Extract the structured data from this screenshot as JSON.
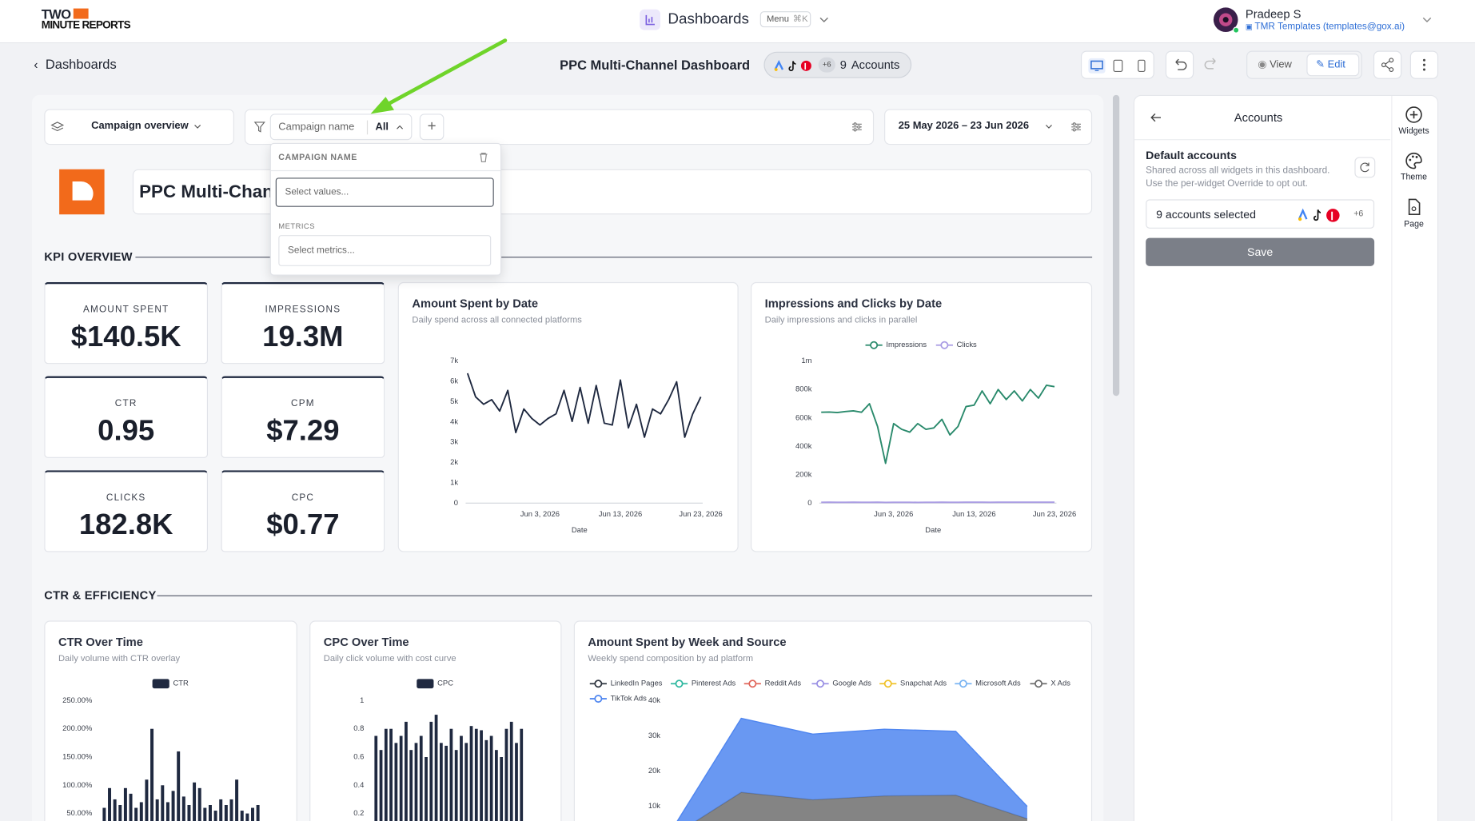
{
  "header": {
    "logo_top": "TWO",
    "logo_bottom": "MINUTE REPORTS",
    "app_title": "Dashboards",
    "menu": "Menu",
    "shortcut": "⌘K",
    "user_name": "Pradeep S",
    "user_org": "TMR Templates (templates@gox.ai)"
  },
  "toolbar": {
    "back": "Dashboards",
    "title": "PPC Multi-Channel Dashboard",
    "accounts_extra": "+6",
    "accounts_count": "9",
    "accounts_label": "Accounts",
    "view": "View",
    "edit": "Edit"
  },
  "filters": {
    "view": "Campaign overview",
    "field": "Campaign name",
    "value": "All",
    "date_range": "25 May 2026 – 23 Jun 2026"
  },
  "dropdown": {
    "heading": "CAMPAIGN NAME",
    "values_placeholder": "Select values...",
    "metrics_heading": "METRICS",
    "metrics_placeholder": "Select metrics..."
  },
  "report": {
    "title": "PPC Multi-Channel Dashboard"
  },
  "sections": [
    "KPI OVERVIEW",
    "CTR & EFFICIENCY"
  ],
  "kpis": [
    {
      "label": "AMOUNT SPENT",
      "value": "$140.5K"
    },
    {
      "label": "IMPRESSIONS",
      "value": "19.3M"
    },
    {
      "label": "CTR",
      "value": "0.95"
    },
    {
      "label": "CPM",
      "value": "$7.29"
    },
    {
      "label": "CLICKS",
      "value": "182.8K"
    },
    {
      "label": "CPC",
      "value": "$0.77"
    }
  ],
  "charts": {
    "amount_by_date": {
      "type": "line",
      "title": "Amount Spent by Date",
      "subtitle": "Daily spend across all connected platforms",
      "x_label": "Date",
      "x": [
        "May 25, 2026",
        "May 26, 2026",
        "May 27, 2026",
        "May 28, 2026",
        "May 29, 2026",
        "May 30, 2026",
        "May 31, 2026",
        "Jun 1, 2026",
        "Jun 2, 2026",
        "Jun 3, 2026",
        "Jun 4, 2026",
        "Jun 5, 2026",
        "Jun 6, 2026",
        "Jun 7, 2026",
        "Jun 8, 2026",
        "Jun 9, 2026",
        "Jun 10, 2026",
        "Jun 11, 2026",
        "Jun 12, 2026",
        "Jun 13, 2026",
        "Jun 14, 2026",
        "Jun 15, 2026",
        "Jun 16, 2026",
        "Jun 17, 2026",
        "Jun 18, 2026",
        "Jun 19, 2026",
        "Jun 20, 2026",
        "Jun 21, 2026",
        "Jun 22, 2026",
        "Jun 23, 2026"
      ],
      "xticks": [
        "Jun 3, 2026",
        "Jun 13, 2026",
        "Jun 23, 2026"
      ],
      "values": [
        6400,
        5240,
        4870,
        5100,
        4540,
        5560,
        3480,
        4640,
        4170,
        3850,
        4170,
        4400,
        5560,
        4030,
        5700,
        3940,
        5800,
        3940,
        3850,
        6070,
        3710,
        4870,
        3250,
        4640,
        4400,
        5100,
        5980,
        3250,
        4400,
        5240
      ],
      "color": "#1f2940",
      "ylim": [
        0,
        7000
      ],
      "yticks": [
        0,
        {
          "value": 1000,
          "label": "1k"
        },
        {
          "value": 2000,
          "label": "2k"
        },
        {
          "value": 3000,
          "label": "3k"
        },
        {
          "value": 4000,
          "label": "4k"
        },
        {
          "value": 5000,
          "label": "5k"
        },
        {
          "value": 6000,
          "label": "6k"
        },
        {
          "value": 7000,
          "label": "7k"
        }
      ]
    },
    "impressions_clicks": {
      "type": "line",
      "title": "Impressions and Clicks by Date",
      "subtitle": "Daily impressions and clicks in parallel",
      "x_label": "Date",
      "legend": "top",
      "x": [
        "May 25, 2026",
        "May 26, 2026",
        "May 27, 2026",
        "May 28, 2026",
        "May 29, 2026",
        "May 30, 2026",
        "May 31, 2026",
        "Jun 1, 2026",
        "Jun 2, 2026",
        "Jun 3, 2026",
        "Jun 4, 2026",
        "Jun 5, 2026",
        "Jun 6, 2026",
        "Jun 7, 2026",
        "Jun 8, 2026",
        "Jun 9, 2026",
        "Jun 10, 2026",
        "Jun 11, 2026",
        "Jun 12, 2026",
        "Jun 13, 2026",
        "Jun 14, 2026",
        "Jun 15, 2026",
        "Jun 16, 2026",
        "Jun 17, 2026",
        "Jun 18, 2026",
        "Jun 19, 2026",
        "Jun 20, 2026",
        "Jun 21, 2026",
        "Jun 22, 2026",
        "Jun 23, 2026"
      ],
      "xticks": [
        "Jun 3, 2026",
        "Jun 13, 2026",
        "Jun 23, 2026"
      ],
      "series": [
        {
          "name": "Impressions",
          "color": "#2a8a6c",
          "values": [
            640000,
            642000,
            638000,
            645000,
            650000,
            640000,
            700000,
            540000,
            280000,
            560000,
            520000,
            500000,
            560000,
            520000,
            530000,
            590000,
            480000,
            540000,
            680000,
            690000,
            790000,
            700000,
            800000,
            730000,
            790000,
            720000,
            800000,
            740000,
            830000,
            820000
          ]
        },
        {
          "name": "Clicks",
          "color": "#a99be3",
          "values": [
            6100,
            6400,
            5900,
            6200,
            6500,
            5800,
            6000,
            6300,
            5200,
            5700,
            5900,
            6100,
            5600,
            6000,
            6200,
            6400,
            5800,
            6100,
            6300,
            6500,
            6700,
            6200,
            6600,
            6400,
            6800,
            6300,
            6700,
            6500,
            6900,
            6800
          ]
        }
      ],
      "ylim": [
        0,
        1000000
      ],
      "yticks": [
        0,
        {
          "value": 200000,
          "label": "200k"
        },
        {
          "value": 400000,
          "label": "400k"
        },
        {
          "value": 600000,
          "label": "600k"
        },
        {
          "value": 800000,
          "label": "800k"
        },
        {
          "value": 1000000,
          "label": "1m"
        }
      ]
    },
    "ctr": {
      "type": "bar",
      "title": "CTR Over Time",
      "subtitle": "Daily volume with CTR overlay",
      "series": [
        {
          "name": "CTR",
          "color": "#1f2940",
          "values": [
            60,
            95,
            75,
            65,
            95,
            85,
            60,
            70,
            110,
            200,
            75,
            100,
            70,
            90,
            160,
            80,
            65,
            105,
            95,
            60,
            65,
            55,
            75,
            65,
            75,
            110,
            55,
            50,
            60,
            65
          ]
        }
      ],
      "ylim": [
        0,
        250
      ],
      "yticks": [
        {
          "value": 50,
          "label": "50.00%"
        },
        {
          "value": 100,
          "label": "100.00%"
        },
        {
          "value": 150,
          "label": "150.00%"
        },
        {
          "value": 200,
          "label": "200.00%"
        },
        {
          "value": 250,
          "label": "250.00%"
        }
      ]
    },
    "cpc": {
      "type": "bar",
      "title": "CPC Over Time",
      "subtitle": "Daily click volume with cost curve",
      "series": [
        {
          "name": "CPC",
          "color": "#1f2940",
          "values": [
            0.75,
            0.65,
            0.8,
            0.8,
            0.7,
            0.75,
            0.85,
            0.65,
            0.7,
            0.75,
            0.6,
            0.85,
            0.9,
            0.7,
            0.68,
            0.8,
            0.65,
            0.75,
            0.7,
            0.82,
            0.8,
            0.79,
            0.72,
            0.75,
            0.65,
            0.6,
            0.8,
            0.85,
            0.7,
            0.8
          ]
        }
      ],
      "ylim": [
        0,
        1
      ],
      "yticks": [
        0.2,
        0.4,
        0.6,
        0.8,
        1
      ]
    },
    "weekly_source": {
      "type": "area",
      "stacked": true,
      "title": "Amount Spent by Week and Source",
      "subtitle": "Weekly spend composition by ad platform",
      "series": [
        {
          "name": "LinkedIn Pages",
          "color": "#2f3640",
          "values": [
            50,
            300,
            250,
            300,
            280,
            100
          ]
        },
        {
          "name": "Pinterest Ads",
          "color": "#2fb8a0",
          "values": [
            80,
            400,
            350,
            380,
            360,
            150
          ]
        },
        {
          "name": "Reddit Ads",
          "color": "#e0675c",
          "values": [
            50,
            250,
            220,
            240,
            230,
            100
          ]
        },
        {
          "name": "Google Ads",
          "color": "#9a90e4",
          "values": [
            200,
            900,
            800,
            850,
            820,
            300
          ]
        },
        {
          "name": "Snapchat Ads",
          "color": "#f0c22a",
          "values": [
            80,
            500,
            400,
            450,
            420,
            150
          ]
        },
        {
          "name": "Microsoft Ads",
          "color": "#7ab4f2",
          "values": [
            150,
            1200,
            1100,
            1150,
            1100,
            400
          ]
        },
        {
          "name": "X Ads",
          "color": "#6e6e6e",
          "values": [
            500,
            10450,
            8780,
            9630,
            9990,
            5300
          ]
        },
        {
          "name": "TikTok Ads",
          "color": "#4f86f0",
          "values": [
            1300,
            21000,
            18600,
            18900,
            18100,
            3500
          ]
        }
      ],
      "ylim": [
        0,
        40000
      ],
      "yticks": [
        {
          "value": 10000,
          "label": "10k"
        },
        {
          "value": 20000,
          "label": "20k"
        },
        {
          "value": 30000,
          "label": "30k"
        },
        {
          "value": 40000,
          "label": "40k"
        }
      ]
    }
  },
  "panel": {
    "title": "Accounts",
    "heading": "Default accounts",
    "description": "Shared across all widgets in this dashboard. Use the per-widget Override to opt out.",
    "selected": "9 accounts selected",
    "extra": "+6",
    "save": "Save",
    "tools": [
      "Widgets",
      "Theme",
      "Page"
    ]
  }
}
